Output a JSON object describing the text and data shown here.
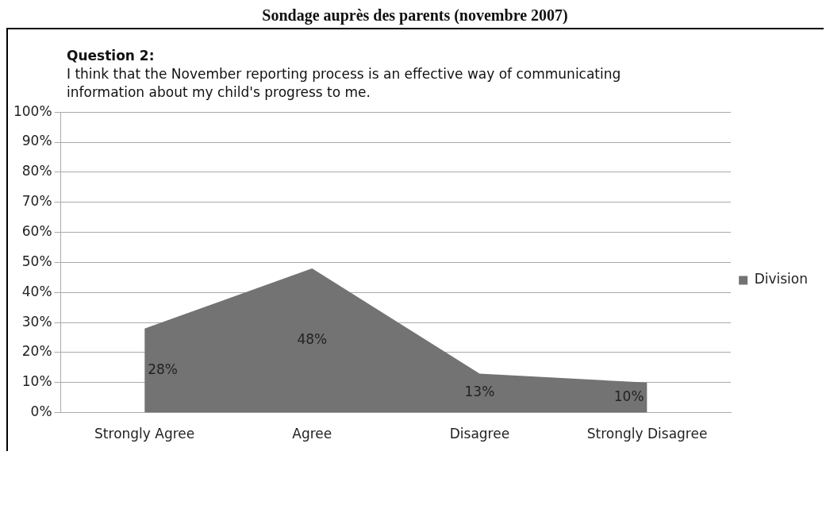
{
  "chart_data": {
    "type": "area",
    "title": "Sondage auprès des parents (novembre 2007)",
    "subtitle": "Question 2:\nI think that the November reporting process is an effective way of communicating information about my child's progress to me.",
    "categories": [
      "Strongly Agree",
      "Agree",
      "Disagree",
      "Strongly Disagree"
    ],
    "series": [
      {
        "name": "Division",
        "color": "#737373",
        "values": [
          28,
          48,
          13,
          10
        ]
      }
    ],
    "ylim": [
      0,
      100
    ],
    "yticks": [
      {
        "value": 0,
        "label": "0%"
      },
      {
        "value": 10,
        "label": "10%"
      },
      {
        "value": 20,
        "label": "20%"
      },
      {
        "value": 30,
        "label": "30%"
      },
      {
        "value": 40,
        "label": "40%"
      },
      {
        "value": 50,
        "label": "50%"
      },
      {
        "value": 60,
        "label": "60%"
      },
      {
        "value": 70,
        "label": "70%"
      },
      {
        "value": 80,
        "label": "80%"
      },
      {
        "value": 90,
        "label": "90%"
      },
      {
        "value": 100,
        "label": "100%"
      }
    ],
    "value_labels": [
      "28%",
      "48%",
      "13%",
      "10%"
    ],
    "grid": "y",
    "legend": "right"
  }
}
